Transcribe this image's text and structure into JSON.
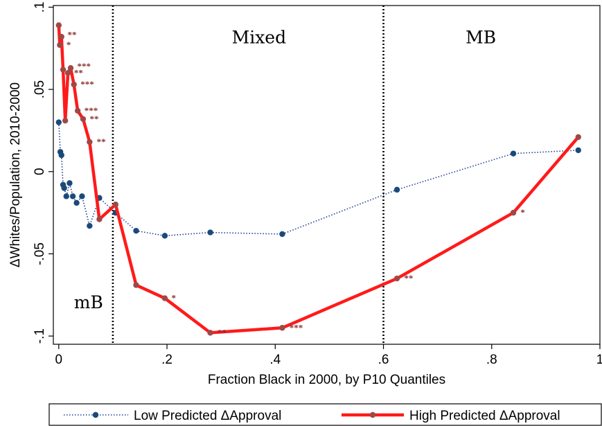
{
  "chart_data": {
    "type": "line",
    "title": "",
    "xlabel": "Fraction Black in 2000, by P10 Quantiles",
    "ylabel": "ΔWhites/Population, 2010-2000",
    "xlim": [
      -0.01,
      1.0
    ],
    "ylim": [
      -0.105,
      0.101
    ],
    "xticks": [
      0,
      0.2,
      0.4,
      0.6,
      0.8,
      1
    ],
    "xtick_labels": [
      "0",
      ".2",
      ".4",
      ".6",
      ".8",
      "1"
    ],
    "yticks": [
      -0.1,
      -0.05,
      0,
      0.05,
      0.1
    ],
    "ytick_labels": [
      "-.1",
      "-.05",
      "0",
      ".05",
      ".1"
    ],
    "grid": false,
    "legend_position": "bottom",
    "vlines": [
      0.1,
      0.6
    ],
    "regions": [
      {
        "label": "mB",
        "x": 0.055,
        "y": -0.083
      },
      {
        "label": "Mixed",
        "x": 0.37,
        "y": 0.078
      },
      {
        "label": "MB",
        "x": 0.78,
        "y": 0.078
      }
    ],
    "series": [
      {
        "name": "Low Predicted ΔApproval",
        "color": "#1f3a93",
        "style": "dotted",
        "x": [
          0.0,
          0.003,
          0.005,
          0.008,
          0.01,
          0.014,
          0.02,
          0.026,
          0.033,
          0.043,
          0.057,
          0.075,
          0.105,
          0.143,
          0.196,
          0.28,
          0.413,
          0.625,
          0.84,
          0.96
        ],
        "y": [
          0.03,
          0.012,
          0.01,
          -0.008,
          -0.01,
          -0.015,
          -0.007,
          -0.015,
          -0.019,
          -0.015,
          -0.033,
          -0.016,
          -0.025,
          -0.036,
          -0.039,
          -0.037,
          -0.038,
          -0.011,
          0.011,
          0.013
        ]
      },
      {
        "name": "High Predicted ΔApproval",
        "color": "#ff1a1a",
        "style": "solid",
        "x": [
          0.0,
          0.002,
          0.005,
          0.008,
          0.012,
          0.017,
          0.022,
          0.028,
          0.035,
          0.045,
          0.057,
          0.075,
          0.105,
          0.143,
          0.196,
          0.28,
          0.413,
          0.625,
          0.84,
          0.96
        ],
        "y": [
          0.089,
          0.077,
          0.082,
          0.062,
          0.031,
          0.06,
          0.063,
          0.053,
          0.037,
          0.032,
          0.018,
          -0.029,
          -0.02,
          -0.069,
          -0.077,
          -0.098,
          -0.095,
          -0.065,
          -0.025,
          0.021
        ]
      }
    ],
    "annotations": [
      {
        "text": "**",
        "x": 0.006,
        "y": 0.083
      },
      {
        "text": "*",
        "x": 0.004,
        "y": 0.077
      },
      {
        "text": "***",
        "x": 0.024,
        "y": 0.064
      },
      {
        "text": "**",
        "x": 0.018,
        "y": 0.06
      },
      {
        "text": "***",
        "x": 0.03,
        "y": 0.053
      },
      {
        "text": "***",
        "x": 0.037,
        "y": 0.037
      },
      {
        "text": "**",
        "x": 0.047,
        "y": 0.032
      },
      {
        "text": "**",
        "x": 0.06,
        "y": 0.018
      },
      {
        "text": "*",
        "x": 0.198,
        "y": -0.077
      },
      {
        "text": "**",
        "x": 0.283,
        "y": -0.098
      },
      {
        "text": "***",
        "x": 0.416,
        "y": -0.095
      },
      {
        "text": "**",
        "x": 0.628,
        "y": -0.065
      },
      {
        "text": "*",
        "x": 0.843,
        "y": -0.025
      }
    ]
  }
}
